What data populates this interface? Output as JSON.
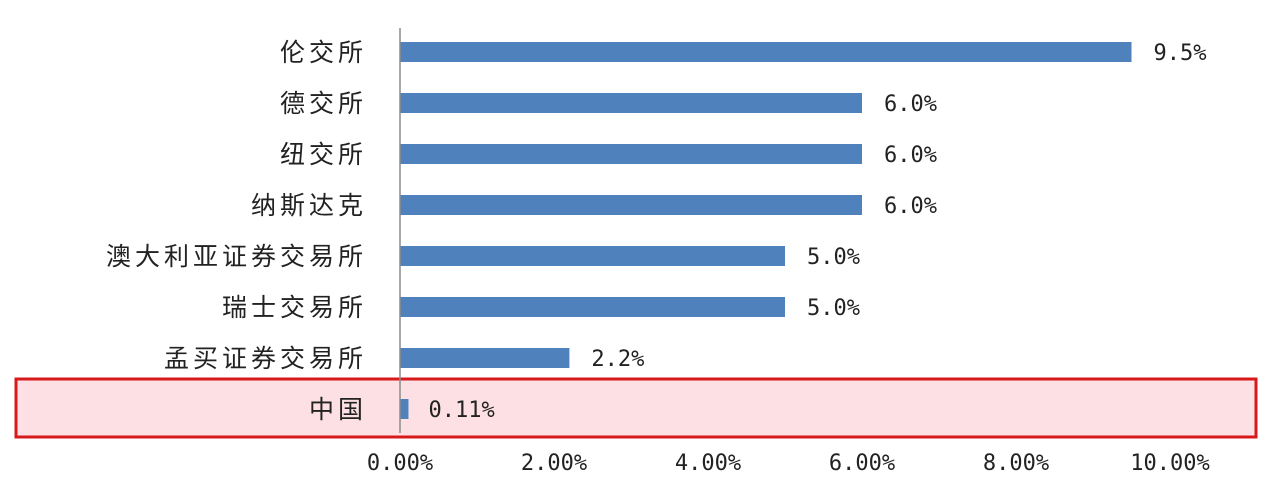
{
  "chart_data": {
    "type": "bar",
    "orientation": "horizontal",
    "categories": [
      "伦交所",
      "德交所",
      "纽交所",
      "纳斯达克",
      "澳大利亚证券交易所",
      "瑞士交易所",
      "孟买证券交易所",
      "中国"
    ],
    "values": [
      9.5,
      6.0,
      6.0,
      6.0,
      5.0,
      5.0,
      2.2,
      0.11
    ],
    "value_labels": [
      "9.5%",
      "6.0%",
      "6.0%",
      "6.0%",
      "5.0%",
      "5.0%",
      "2.2%",
      "0.11%"
    ],
    "xlim": [
      0,
      10
    ],
    "xticks": [
      0,
      2,
      4,
      6,
      8,
      10
    ],
    "xtick_labels": [
      "0.00%",
      "2.00%",
      "4.00%",
      "6.00%",
      "8.00%",
      "10.00%"
    ],
    "title": "",
    "xlabel": "",
    "ylabel": "",
    "grid": false,
    "bar_color": "#4f81bd",
    "highlight": {
      "category": "中国",
      "fill": "#fde0e3",
      "border": "#d7191c"
    }
  }
}
